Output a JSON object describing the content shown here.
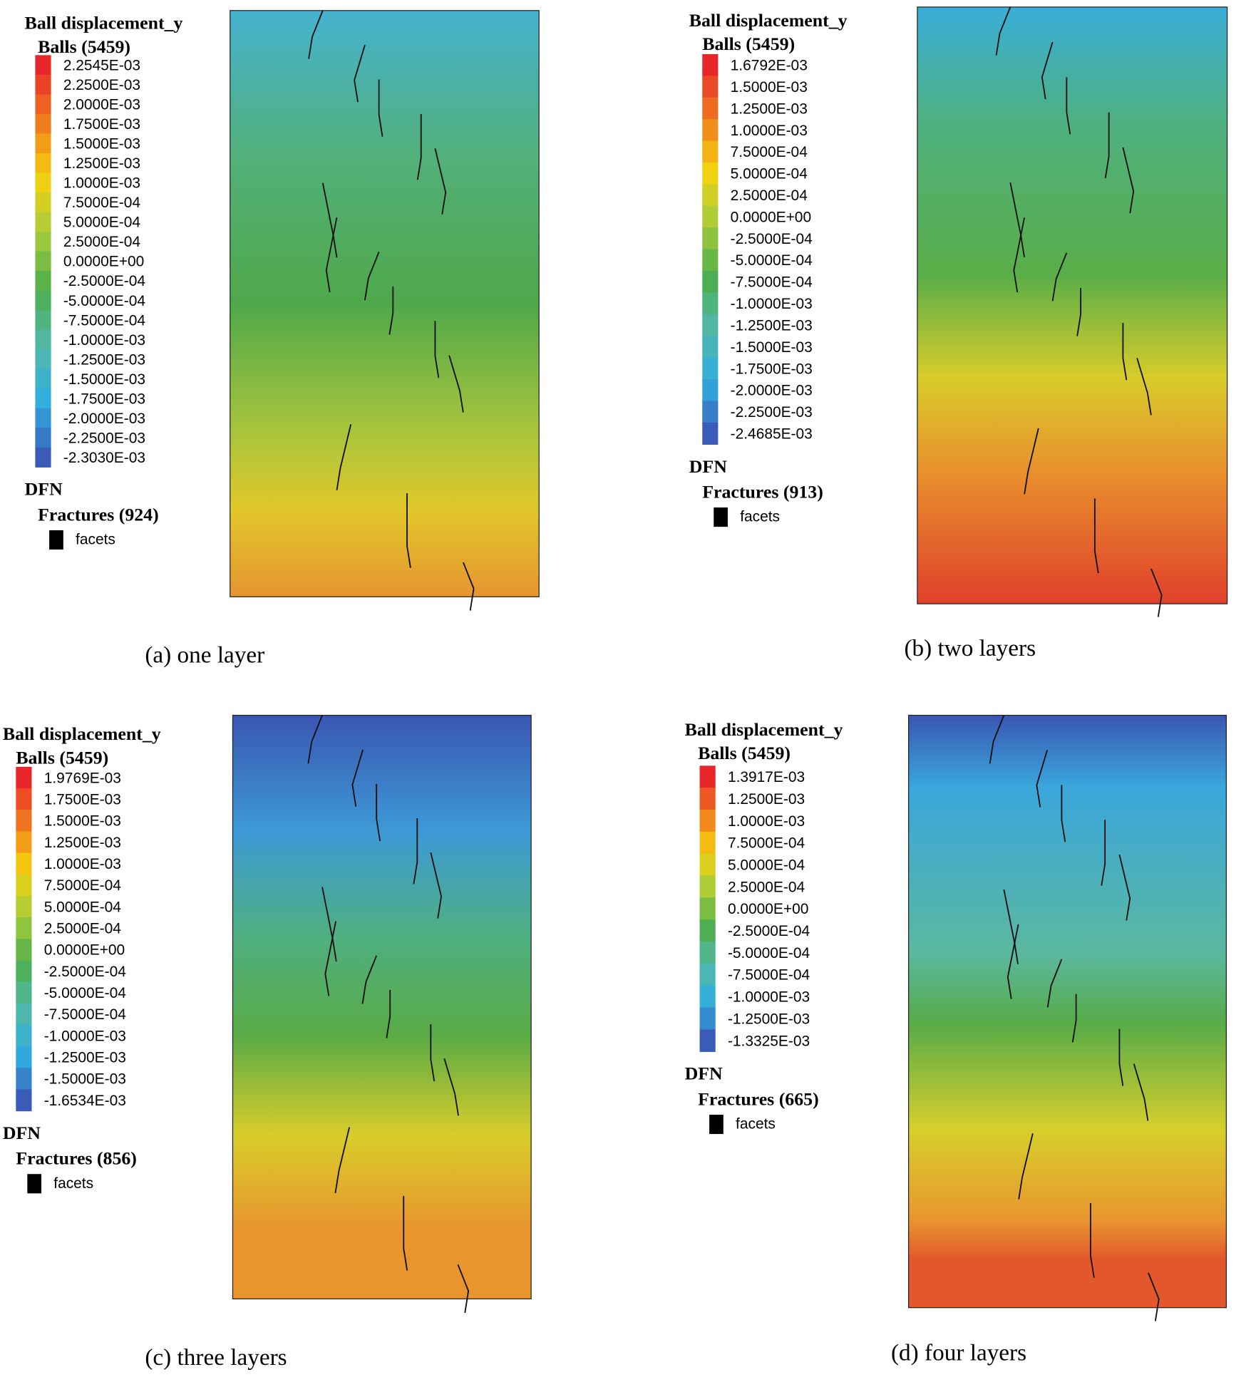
{
  "panels": [
    {
      "legend_title": "Ball displacement_y",
      "group": "Balls (5459)",
      "entries": [
        "2.2545E-03",
        "2.2500E-03",
        "2.0000E-03",
        "1.7500E-03",
        "1.5000E-03",
        "1.2500E-03",
        "1.0000E-03",
        "7.5000E-04",
        "5.0000E-04",
        "2.5000E-04",
        "0.0000E+00",
        "-2.5000E-04",
        "-5.0000E-04",
        "-7.5000E-04",
        "-1.0000E-03",
        "-1.2500E-03",
        "-1.5000E-03",
        "-1.7500E-03",
        "-2.0000E-03",
        "-2.2500E-03",
        "-2.3030E-03"
      ],
      "dfn": "DFN",
      "fractures": "Fractures (924)",
      "facets": "facets",
      "caption": "(a) one layer"
    },
    {
      "legend_title": "Ball displacement_y",
      "group": "Balls (5459)",
      "entries": [
        "1.6792E-03",
        "1.5000E-03",
        "1.2500E-03",
        "1.0000E-03",
        "7.5000E-04",
        "5.0000E-04",
        "2.5000E-04",
        "0.0000E+00",
        "-2.5000E-04",
        "-5.0000E-04",
        "-7.5000E-04",
        "-1.0000E-03",
        "-1.2500E-03",
        "-1.5000E-03",
        "-1.7500E-03",
        "-2.0000E-03",
        "-2.2500E-03",
        "-2.4685E-03"
      ],
      "dfn": "DFN",
      "fractures": "Fractures (913)",
      "facets": "facets",
      "caption": "(b) two layers"
    },
    {
      "legend_title": "Ball displacement_y",
      "group": "Balls (5459)",
      "entries": [
        "1.9769E-03",
        "1.7500E-03",
        "1.5000E-03",
        "1.2500E-03",
        "1.0000E-03",
        "7.5000E-04",
        "5.0000E-04",
        "2.5000E-04",
        "0.0000E+00",
        "-2.5000E-04",
        "-5.0000E-04",
        "-7.5000E-04",
        "-1.0000E-03",
        "-1.2500E-03",
        "-1.5000E-03",
        "-1.6534E-03"
      ],
      "dfn": "DFN",
      "fractures": "Fractures (856)",
      "facets": "facets",
      "caption": "(c) three layers"
    },
    {
      "legend_title": "Ball displacement_y",
      "group": "Balls (5459)",
      "entries": [
        "1.3917E-03",
        "1.2500E-03",
        "1.0000E-03",
        "7.5000E-04",
        "5.0000E-04",
        "2.5000E-04",
        "0.0000E+00",
        "-2.5000E-04",
        "-5.0000E-04",
        "-7.5000E-04",
        "-1.0000E-03",
        "-1.2500E-03",
        "-1.3325E-03"
      ],
      "dfn": "DFN",
      "fractures": "Fractures (665)",
      "facets": "facets",
      "caption": "(d) four layers"
    }
  ]
}
